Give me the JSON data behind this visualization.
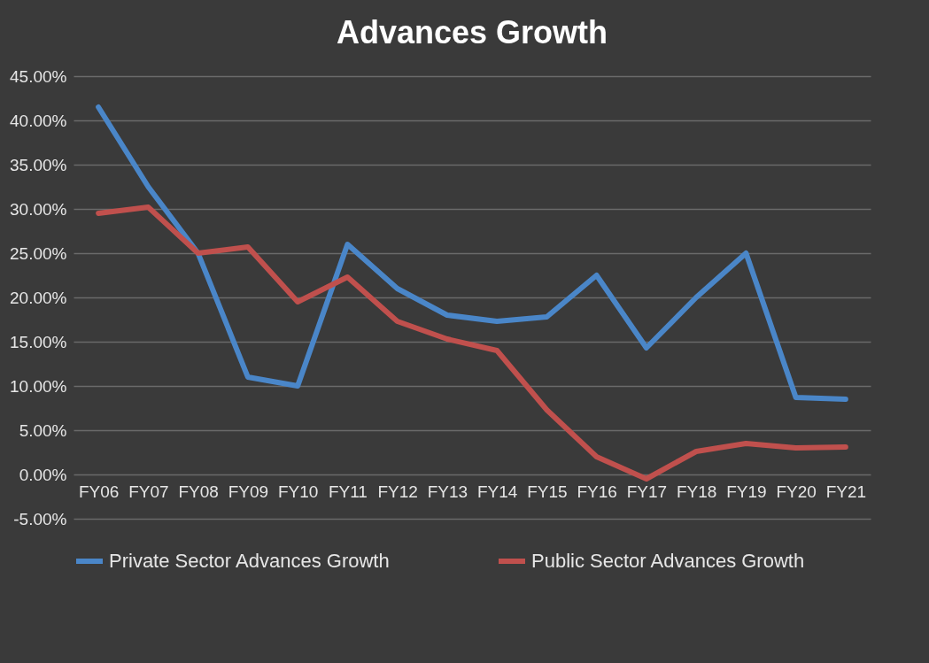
{
  "chart_data": {
    "type": "line",
    "title": "Advances Growth",
    "categories": [
      "FY06",
      "FY07",
      "FY08",
      "FY09",
      "FY10",
      "FY11",
      "FY12",
      "FY13",
      "FY14",
      "FY15",
      "FY16",
      "FY17",
      "FY18",
      "FY19",
      "FY20",
      "FY21"
    ],
    "series": [
      {
        "name": "Private Sector Advances Growth",
        "color": "#4a86c8",
        "values": [
          41.5,
          32.5,
          25,
          11,
          10,
          26,
          21,
          18,
          17.3,
          17.8,
          22.5,
          14.3,
          20,
          25,
          8.7,
          8.5
        ]
      },
      {
        "name": "Public Sector Advances Growth",
        "color": "#c0504d",
        "values": [
          29.5,
          30.2,
          25,
          25.7,
          19.5,
          22.3,
          17.3,
          15.3,
          14,
          7.3,
          2,
          -0.5,
          2.6,
          3.5,
          3,
          3.1
        ]
      }
    ],
    "ylim": [
      -5,
      45
    ],
    "yticks": [
      {
        "value": -5,
        "label": "-5.00%"
      },
      {
        "value": 0,
        "label": "0.00%"
      },
      {
        "value": 5,
        "label": "5.00%"
      },
      {
        "value": 10,
        "label": "10.00%"
      },
      {
        "value": 15,
        "label": "15.00%"
      },
      {
        "value": 20,
        "label": "20.00%"
      },
      {
        "value": 25,
        "label": "25.00%"
      },
      {
        "value": 30,
        "label": "30.00%"
      },
      {
        "value": 35,
        "label": "35.00%"
      },
      {
        "value": 40,
        "label": "40.00%"
      },
      {
        "value": 45,
        "label": "45.00%"
      }
    ],
    "grid": "y",
    "legend": "bottom",
    "line_style": "solid"
  }
}
